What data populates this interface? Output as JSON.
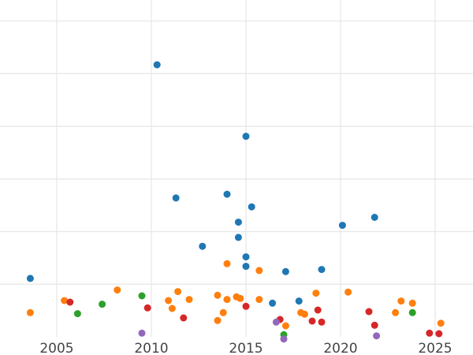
{
  "chart_data": {
    "type": "scatter",
    "title": "",
    "xlabel": "",
    "ylabel": "",
    "xlim": [
      2002,
      2027
    ],
    "ylim": [
      0,
      64
    ],
    "grid": true,
    "x_ticks": [
      2005,
      2010,
      2015,
      2020,
      2025
    ],
    "x_tick_labels": [
      "2005",
      "2010",
      "2015",
      "2020",
      "2025"
    ],
    "y_ticks": [
      10,
      20,
      30,
      40,
      50,
      60
    ],
    "series": [
      {
        "color": "#1f77b4",
        "points": [
          [
            2003.6,
            11.1
          ],
          [
            2010.3,
            51.7
          ],
          [
            2011.3,
            26.4
          ],
          [
            2012.7,
            17.2
          ],
          [
            2014.0,
            27.1
          ],
          [
            2014.6,
            21.8
          ],
          [
            2014.6,
            18.9
          ],
          [
            2015.0,
            38.1
          ],
          [
            2015.0,
            15.2
          ],
          [
            2015.0,
            13.4
          ],
          [
            2015.3,
            24.7
          ],
          [
            2016.4,
            6.4
          ],
          [
            2017.1,
            12.4
          ],
          [
            2017.8,
            6.8
          ],
          [
            2019.0,
            12.8
          ],
          [
            2020.1,
            21.2
          ],
          [
            2021.8,
            22.7
          ]
        ]
      },
      {
        "color": "#ff7f0e",
        "points": [
          [
            2003.6,
            4.6
          ],
          [
            2005.4,
            6.9
          ],
          [
            2008.2,
            8.9
          ],
          [
            2010.9,
            6.9
          ],
          [
            2011.1,
            5.4
          ],
          [
            2011.4,
            8.6
          ],
          [
            2012.0,
            7.1
          ],
          [
            2013.5,
            3.1
          ],
          [
            2013.5,
            7.9
          ],
          [
            2013.8,
            4.6
          ],
          [
            2014.0,
            13.9
          ],
          [
            2014.0,
            7.1
          ],
          [
            2014.5,
            7.6
          ],
          [
            2014.7,
            7.3
          ],
          [
            2015.7,
            7.1
          ],
          [
            2015.7,
            12.6
          ],
          [
            2017.1,
            2.1
          ],
          [
            2017.9,
            4.6
          ],
          [
            2018.1,
            4.3
          ],
          [
            2018.7,
            8.3
          ],
          [
            2020.4,
            8.5
          ],
          [
            2022.9,
            4.6
          ],
          [
            2023.2,
            6.8
          ],
          [
            2023.8,
            6.4
          ],
          [
            2025.3,
            2.6
          ]
        ]
      },
      {
        "color": "#2ca02c",
        "points": [
          [
            2006.1,
            4.4
          ],
          [
            2007.4,
            6.2
          ],
          [
            2009.5,
            7.8
          ],
          [
            2017.0,
            0.4
          ],
          [
            2023.8,
            4.6
          ]
        ]
      },
      {
        "color": "#d62728",
        "points": [
          [
            2005.7,
            6.6
          ],
          [
            2009.8,
            5.5
          ],
          [
            2011.7,
            3.6
          ],
          [
            2015.0,
            5.8
          ],
          [
            2016.8,
            3.3
          ],
          [
            2018.5,
            3.0
          ],
          [
            2018.8,
            5.1
          ],
          [
            2019.0,
            2.8
          ],
          [
            2021.5,
            4.8
          ],
          [
            2021.8,
            2.2
          ],
          [
            2024.7,
            0.7
          ],
          [
            2025.2,
            0.6
          ]
        ]
      },
      {
        "color": "#9467bd",
        "points": [
          [
            2009.5,
            0.7
          ],
          [
            2016.6,
            2.8
          ],
          [
            2017.0,
            -0.4
          ],
          [
            2021.9,
            0.2
          ]
        ]
      }
    ]
  }
}
